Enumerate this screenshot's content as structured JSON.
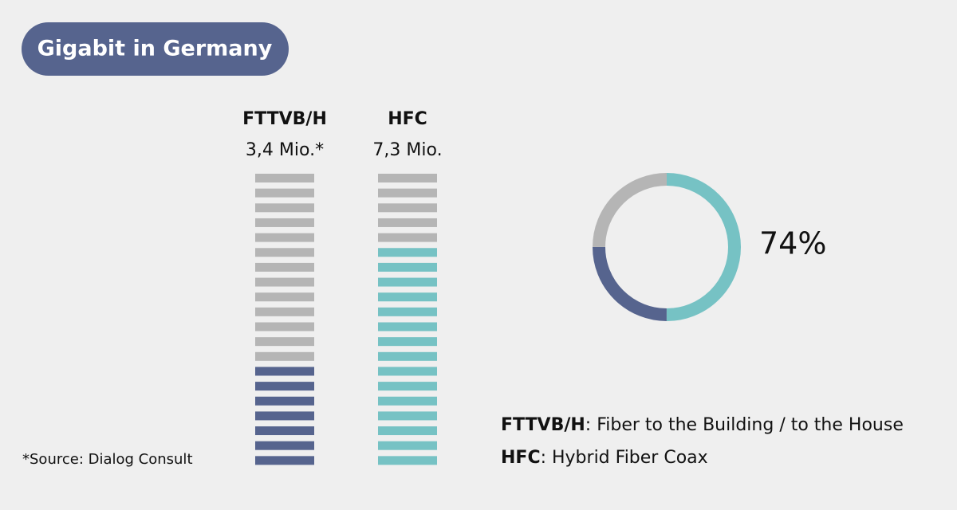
{
  "header": {
    "title": "Gigabit in Germany"
  },
  "chart_data": {
    "type": "unit-columns",
    "units_total": 20,
    "empty_color": "#b5b5b5",
    "series": [
      {
        "name": "FTTVB/H",
        "value_label": "3,4 Mio.*",
        "color": "#56648e",
        "units": 7
      },
      {
        "name": "HFC",
        "value_label": "7,3 Mio.",
        "color": "#76c2c4",
        "units": 15
      }
    ]
  },
  "donut": {
    "type": "pie",
    "label": "74%",
    "values": [
      50,
      25,
      25
    ],
    "colors": [
      "#76c2c4",
      "#56648e",
      "#b5b5b5"
    ]
  },
  "legend": [
    {
      "term": "FTTVB/H",
      "text": ": Fiber to the Building / to the House"
    },
    {
      "term": "HFC",
      "text": ": Hybrid Fiber Coax"
    }
  ],
  "source": "*Source: Dialog Consult"
}
